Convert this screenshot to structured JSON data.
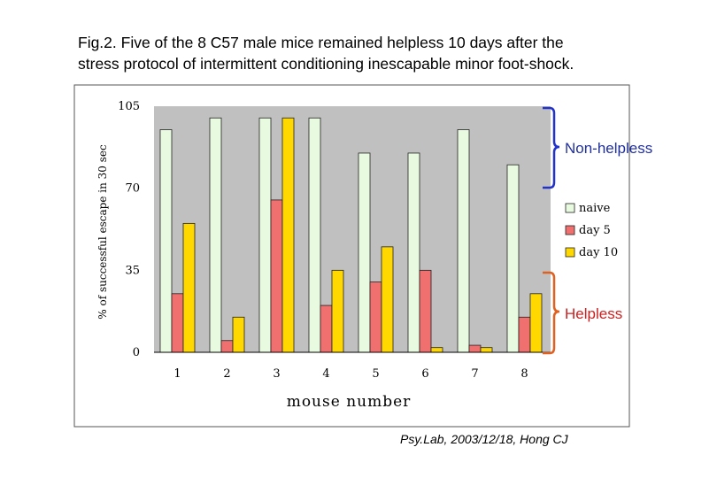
{
  "caption": {
    "line1": "Fig.2. Five of the 8 C57 male mice remained helpless 10 days after the",
    "line2": "stress protocol of intermittent conditioning inescapable minor foot-shock."
  },
  "credit": "Psy.Lab, 2003/12/18, Hong CJ",
  "annotations": {
    "non_helpless": "Non-helpless",
    "helpless": "Helpless"
  },
  "colors": {
    "naive": "#e8fbe0",
    "day5": "#f07070",
    "day10": "#ffd800",
    "plot_bg": "#c0c0c0",
    "bracket_top": "#2233cc",
    "bracket_bottom": "#e06020",
    "non_helpless_text": "#2030a0",
    "helpless_text": "#cc2020"
  },
  "chart_data": {
    "type": "bar",
    "title": "",
    "xlabel": "mouse number",
    "ylabel": "% of successful escape in 30 sec",
    "categories": [
      "1",
      "2",
      "3",
      "4",
      "5",
      "6",
      "7",
      "8"
    ],
    "yticks": [
      "0",
      "35",
      "70",
      "105"
    ],
    "ylim": [
      0,
      105
    ],
    "series": [
      {
        "name": "naive",
        "values": [
          95,
          100,
          100,
          100,
          85,
          85,
          95,
          80
        ]
      },
      {
        "name": "day 5",
        "values": [
          25,
          5,
          65,
          20,
          30,
          35,
          3,
          15
        ]
      },
      {
        "name": "day 10",
        "values": [
          55,
          15,
          100,
          35,
          45,
          2,
          2,
          25
        ]
      }
    ],
    "legend": [
      "naive",
      "day 5",
      "day 10"
    ],
    "legend_position": "right"
  }
}
